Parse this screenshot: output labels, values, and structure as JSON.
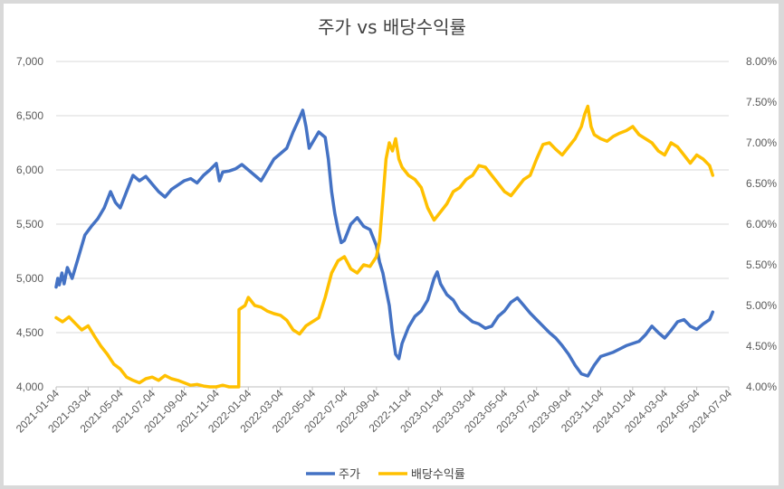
{
  "chart_data": {
    "type": "line",
    "title": "주가 vs 배당수익률",
    "x_ticks": [
      "2021-01-04",
      "2021-03-04",
      "2021-05-04",
      "2021-07-04",
      "2021-09-04",
      "2021-11-04",
      "2022-01-04",
      "2022-03-04",
      "2022-05-04",
      "2022-07-04",
      "2022-09-04",
      "2022-11-04",
      "2023-01-04",
      "2023-03-04",
      "2023-05-04",
      "2023-07-04",
      "2023-09-04",
      "2023-11-04",
      "2024-01-04",
      "2024-03-04",
      "2024-05-04",
      "2024-07-04"
    ],
    "y_left": {
      "min": 4000,
      "max": 7000,
      "ticks": [
        "4,000",
        "4,500",
        "5,000",
        "5,500",
        "6,000",
        "6,500",
        "7,000"
      ]
    },
    "y_right": {
      "min": 4.0,
      "max": 8.0,
      "ticks": [
        "4.00%",
        "4.50%",
        "5.00%",
        "5.50%",
        "6.00%",
        "6.50%",
        "7.00%",
        "7.50%",
        "8.00%"
      ]
    },
    "series": [
      {
        "name": "주가",
        "axis": "left",
        "color": "#4472c4",
        "points": [
          [
            0,
            4920
          ],
          [
            0.05,
            5000
          ],
          [
            0.1,
            4940
          ],
          [
            0.18,
            5050
          ],
          [
            0.25,
            4950
          ],
          [
            0.35,
            5100
          ],
          [
            0.5,
            5000
          ],
          [
            0.7,
            5200
          ],
          [
            0.9,
            5400
          ],
          [
            1.1,
            5480
          ],
          [
            1.3,
            5550
          ],
          [
            1.5,
            5650
          ],
          [
            1.7,
            5800
          ],
          [
            1.85,
            5700
          ],
          [
            2.0,
            5650
          ],
          [
            2.2,
            5800
          ],
          [
            2.4,
            5950
          ],
          [
            2.6,
            5900
          ],
          [
            2.8,
            5940
          ],
          [
            3.0,
            5870
          ],
          [
            3.2,
            5800
          ],
          [
            3.4,
            5750
          ],
          [
            3.6,
            5820
          ],
          [
            3.8,
            5860
          ],
          [
            4.0,
            5900
          ],
          [
            4.2,
            5920
          ],
          [
            4.4,
            5880
          ],
          [
            4.6,
            5950
          ],
          [
            4.8,
            6000
          ],
          [
            5.0,
            6060
          ],
          [
            5.1,
            5900
          ],
          [
            5.2,
            5980
          ],
          [
            5.4,
            5990
          ],
          [
            5.6,
            6010
          ],
          [
            5.8,
            6050
          ],
          [
            6.0,
            6000
          ],
          [
            6.2,
            5950
          ],
          [
            6.4,
            5900
          ],
          [
            6.6,
            6000
          ],
          [
            6.8,
            6100
          ],
          [
            7.0,
            6150
          ],
          [
            7.2,
            6200
          ],
          [
            7.4,
            6350
          ],
          [
            7.6,
            6480
          ],
          [
            7.7,
            6550
          ],
          [
            7.8,
            6400
          ],
          [
            7.9,
            6200
          ],
          [
            8.0,
            6250
          ],
          [
            8.2,
            6350
          ],
          [
            8.4,
            6300
          ],
          [
            8.5,
            6100
          ],
          [
            8.6,
            5800
          ],
          [
            8.7,
            5600
          ],
          [
            8.8,
            5450
          ],
          [
            8.9,
            5330
          ],
          [
            9.0,
            5350
          ],
          [
            9.2,
            5500
          ],
          [
            9.4,
            5560
          ],
          [
            9.6,
            5480
          ],
          [
            9.8,
            5450
          ],
          [
            10.0,
            5300
          ],
          [
            10.1,
            5150
          ],
          [
            10.2,
            5050
          ],
          [
            10.3,
            4900
          ],
          [
            10.4,
            4750
          ],
          [
            10.5,
            4500
          ],
          [
            10.6,
            4300
          ],
          [
            10.7,
            4260
          ],
          [
            10.8,
            4400
          ],
          [
            11.0,
            4550
          ],
          [
            11.2,
            4650
          ],
          [
            11.4,
            4700
          ],
          [
            11.6,
            4800
          ],
          [
            11.8,
            5000
          ],
          [
            11.9,
            5060
          ],
          [
            12.0,
            4950
          ],
          [
            12.2,
            4850
          ],
          [
            12.4,
            4800
          ],
          [
            12.6,
            4700
          ],
          [
            12.8,
            4650
          ],
          [
            13.0,
            4600
          ],
          [
            13.2,
            4580
          ],
          [
            13.4,
            4540
          ],
          [
            13.6,
            4560
          ],
          [
            13.8,
            4650
          ],
          [
            14.0,
            4700
          ],
          [
            14.2,
            4780
          ],
          [
            14.4,
            4820
          ],
          [
            14.6,
            4750
          ],
          [
            14.8,
            4680
          ],
          [
            15.0,
            4620
          ],
          [
            15.2,
            4560
          ],
          [
            15.4,
            4500
          ],
          [
            15.6,
            4450
          ],
          [
            15.8,
            4380
          ],
          [
            16.0,
            4300
          ],
          [
            16.2,
            4200
          ],
          [
            16.4,
            4120
          ],
          [
            16.6,
            4100
          ],
          [
            16.8,
            4200
          ],
          [
            17.0,
            4280
          ],
          [
            17.2,
            4300
          ],
          [
            17.4,
            4320
          ],
          [
            17.6,
            4350
          ],
          [
            17.8,
            4380
          ],
          [
            18.0,
            4400
          ],
          [
            18.2,
            4420
          ],
          [
            18.4,
            4480
          ],
          [
            18.6,
            4560
          ],
          [
            18.8,
            4500
          ],
          [
            19.0,
            4450
          ],
          [
            19.2,
            4520
          ],
          [
            19.4,
            4600
          ],
          [
            19.6,
            4620
          ],
          [
            19.8,
            4560
          ],
          [
            20.0,
            4530
          ],
          [
            20.2,
            4580
          ],
          [
            20.4,
            4620
          ],
          [
            20.5,
            4690
          ]
        ]
      },
      {
        "name": "배당수익률",
        "axis": "right",
        "color": "#ffc000",
        "points": [
          [
            0,
            4.85
          ],
          [
            0.2,
            4.8
          ],
          [
            0.4,
            4.86
          ],
          [
            0.6,
            4.78
          ],
          [
            0.8,
            4.7
          ],
          [
            1.0,
            4.75
          ],
          [
            1.2,
            4.62
          ],
          [
            1.4,
            4.5
          ],
          [
            1.6,
            4.4
          ],
          [
            1.8,
            4.28
          ],
          [
            2.0,
            4.22
          ],
          [
            2.2,
            4.12
          ],
          [
            2.4,
            4.08
          ],
          [
            2.6,
            4.05
          ],
          [
            2.8,
            4.1
          ],
          [
            3.0,
            4.12
          ],
          [
            3.2,
            4.08
          ],
          [
            3.4,
            4.14
          ],
          [
            3.6,
            4.1
          ],
          [
            3.8,
            4.08
          ],
          [
            4.0,
            4.05
          ],
          [
            4.2,
            4.02
          ],
          [
            4.4,
            4.03
          ],
          [
            4.6,
            4.01
          ],
          [
            4.8,
            4.0
          ],
          [
            5.0,
            4.0
          ],
          [
            5.2,
            4.02
          ],
          [
            5.4,
            4.0
          ],
          [
            5.6,
            4.0
          ],
          [
            5.7,
            4.0
          ],
          [
            5.71,
            4.95
          ],
          [
            5.9,
            5.0
          ],
          [
            6.0,
            5.1
          ],
          [
            6.2,
            5.0
          ],
          [
            6.4,
            4.98
          ],
          [
            6.6,
            4.93
          ],
          [
            6.8,
            4.9
          ],
          [
            7.0,
            4.88
          ],
          [
            7.2,
            4.82
          ],
          [
            7.4,
            4.7
          ],
          [
            7.6,
            4.65
          ],
          [
            7.8,
            4.75
          ],
          [
            8.0,
            4.8
          ],
          [
            8.2,
            4.85
          ],
          [
            8.4,
            5.1
          ],
          [
            8.6,
            5.4
          ],
          [
            8.8,
            5.55
          ],
          [
            9.0,
            5.6
          ],
          [
            9.2,
            5.45
          ],
          [
            9.4,
            5.4
          ],
          [
            9.6,
            5.5
          ],
          [
            9.8,
            5.48
          ],
          [
            10.0,
            5.6
          ],
          [
            10.1,
            5.8
          ],
          [
            10.2,
            6.3
          ],
          [
            10.3,
            6.8
          ],
          [
            10.4,
            7.0
          ],
          [
            10.5,
            6.9
          ],
          [
            10.6,
            7.05
          ],
          [
            10.7,
            6.8
          ],
          [
            10.8,
            6.7
          ],
          [
            11.0,
            6.6
          ],
          [
            11.2,
            6.55
          ],
          [
            11.4,
            6.45
          ],
          [
            11.6,
            6.2
          ],
          [
            11.8,
            6.05
          ],
          [
            12.0,
            6.15
          ],
          [
            12.2,
            6.25
          ],
          [
            12.4,
            6.4
          ],
          [
            12.6,
            6.45
          ],
          [
            12.8,
            6.55
          ],
          [
            13.0,
            6.6
          ],
          [
            13.2,
            6.72
          ],
          [
            13.4,
            6.7
          ],
          [
            13.6,
            6.6
          ],
          [
            13.8,
            6.5
          ],
          [
            14.0,
            6.4
          ],
          [
            14.2,
            6.35
          ],
          [
            14.4,
            6.45
          ],
          [
            14.6,
            6.55
          ],
          [
            14.8,
            6.6
          ],
          [
            15.0,
            6.8
          ],
          [
            15.2,
            6.98
          ],
          [
            15.4,
            7.0
          ],
          [
            15.6,
            6.92
          ],
          [
            15.8,
            6.85
          ],
          [
            16.0,
            6.95
          ],
          [
            16.2,
            7.05
          ],
          [
            16.4,
            7.2
          ],
          [
            16.5,
            7.35
          ],
          [
            16.6,
            7.45
          ],
          [
            16.7,
            7.2
          ],
          [
            16.8,
            7.1
          ],
          [
            17.0,
            7.05
          ],
          [
            17.2,
            7.02
          ],
          [
            17.4,
            7.08
          ],
          [
            17.6,
            7.12
          ],
          [
            17.8,
            7.15
          ],
          [
            18.0,
            7.2
          ],
          [
            18.2,
            7.1
          ],
          [
            18.4,
            7.05
          ],
          [
            18.6,
            7.0
          ],
          [
            18.8,
            6.9
          ],
          [
            19.0,
            6.85
          ],
          [
            19.2,
            7.0
          ],
          [
            19.4,
            6.95
          ],
          [
            19.6,
            6.85
          ],
          [
            19.8,
            6.75
          ],
          [
            20.0,
            6.85
          ],
          [
            20.2,
            6.8
          ],
          [
            20.4,
            6.72
          ],
          [
            20.5,
            6.6
          ]
        ]
      }
    ],
    "legend": [
      "주가",
      "배당수익률"
    ],
    "legend_position": "bottom"
  }
}
